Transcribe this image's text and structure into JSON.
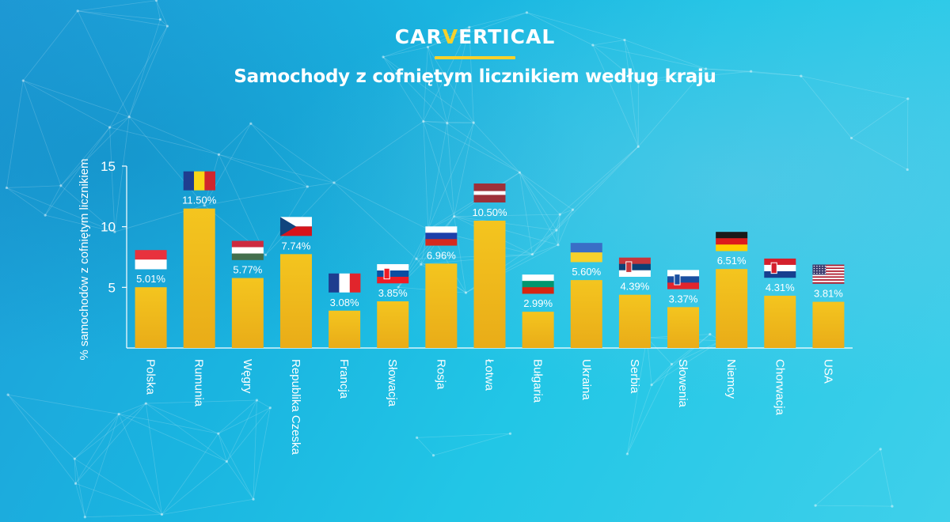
{
  "brand": {
    "logo_pre": "CAR",
    "logo_v": "V",
    "logo_post": "ERTICAL"
  },
  "colors": {
    "bar": "#f2bf1c",
    "bar_dark": "#e8a81a",
    "accent": "#f7d12b",
    "text": "#ffffff"
  },
  "chart_data": {
    "type": "bar",
    "title": "Samochody z cofniętym licznikiem według kraju",
    "xlabel": "",
    "ylabel": "% samochodów z cofniętym licznikiem",
    "ylim": [
      0,
      15
    ],
    "yticks": [
      5,
      10,
      15
    ],
    "grid": false,
    "categories": [
      "Polska",
      "Rumunia",
      "Węgry",
      "Republika Czeska",
      "Francja",
      "Słowacja",
      "Rosja",
      "Łotwa",
      "Bułgaria",
      "Ukraina",
      "Serbia",
      "Słowenia",
      "Niemcy",
      "Chorwacja",
      "USA"
    ],
    "values": [
      5.01,
      11.5,
      5.77,
      7.74,
      3.08,
      3.85,
      6.96,
      10.5,
      2.99,
      5.6,
      4.39,
      3.37,
      6.51,
      4.31,
      3.81
    ],
    "value_labels": [
      "5.01%",
      "11.50%",
      "5.77%",
      "7.74%",
      "3.08%",
      "3.85%",
      "6.96%",
      "10.50%",
      "2.99%",
      "5.60%",
      "4.39%",
      "3.37%",
      "6.51%",
      "4.31%",
      "3.81%"
    ],
    "flags": [
      {
        "icon": "poland-flag-icon",
        "kind": "h",
        "stripes": [
          "#e8313d",
          "#ffffff"
        ]
      },
      {
        "icon": "romania-flag-icon",
        "kind": "v",
        "stripes": [
          "#1f3d8f",
          "#f9d616",
          "#d0262d"
        ]
      },
      {
        "icon": "hungary-flag-icon",
        "kind": "h",
        "stripes": [
          "#cd2a3e",
          "#ffffff",
          "#436f4d"
        ]
      },
      {
        "icon": "czech-flag-icon",
        "kind": "czech",
        "stripes": [
          "#ffffff",
          "#d7141a",
          "#11457e"
        ]
      },
      {
        "icon": "france-flag-icon",
        "kind": "v",
        "stripes": [
          "#1e3d8f",
          "#ffffff",
          "#e1252c"
        ]
      },
      {
        "icon": "slovakia-flag-icon",
        "kind": "h",
        "stripes": [
          "#ffffff",
          "#0b4ea2",
          "#ee1c25"
        ],
        "emblem": "#ee1c25"
      },
      {
        "icon": "russia-flag-icon",
        "kind": "h",
        "stripes": [
          "#ffffff",
          "#1c3faa",
          "#d52b1e"
        ]
      },
      {
        "icon": "latvia-flag-icon",
        "kind": "latvia",
        "stripes": [
          "#9e3039",
          "#ffffff",
          "#9e3039"
        ]
      },
      {
        "icon": "bulgaria-flag-icon",
        "kind": "h",
        "stripes": [
          "#ffffff",
          "#00966e",
          "#d62612"
        ]
      },
      {
        "icon": "ukraine-flag-icon",
        "kind": "h",
        "stripes": [
          "#3a6ec6",
          "#f7d12b"
        ]
      },
      {
        "icon": "serbia-flag-icon",
        "kind": "h",
        "stripes": [
          "#c6363c",
          "#0c4076",
          "#ffffff"
        ],
        "emblem": "#c6363c"
      },
      {
        "icon": "slovenia-flag-icon",
        "kind": "h",
        "stripes": [
          "#ffffff",
          "#1a4fa0",
          "#e1252c"
        ],
        "emblem": "#1a4fa0"
      },
      {
        "icon": "germany-flag-icon",
        "kind": "h",
        "stripes": [
          "#1a1a1a",
          "#dd1c1c",
          "#ffce00"
        ]
      },
      {
        "icon": "croatia-flag-icon",
        "kind": "h",
        "stripes": [
          "#d4202c",
          "#ffffff",
          "#173f8f"
        ],
        "emblem": "#d4202c"
      },
      {
        "icon": "usa-flag-icon",
        "kind": "usa",
        "stripes": [
          "#b22234",
          "#ffffff",
          "#3c3b6e"
        ]
      }
    ]
  }
}
